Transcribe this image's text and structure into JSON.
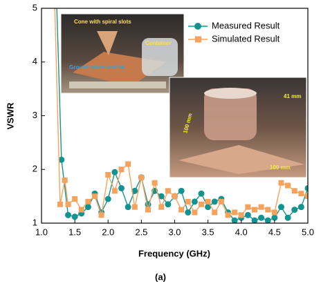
{
  "chart_data": {
    "type": "line",
    "x_label": "Frequency (GHz)",
    "y_label": "VSWR",
    "caption": "(a)",
    "series": [
      {
        "name": "Measured Result",
        "color": "#12938f",
        "marker": "circle",
        "x": [
          1.23,
          1.3,
          1.4,
          1.5,
          1.6,
          1.7,
          1.8,
          1.9,
          2.0,
          2.1,
          2.2,
          2.3,
          2.4,
          2.5,
          2.6,
          2.7,
          2.8,
          2.9,
          3.0,
          3.1,
          3.2,
          3.3,
          3.4,
          3.5,
          3.6,
          3.7,
          3.8,
          3.9,
          4.0,
          4.1,
          4.2,
          4.3,
          4.4,
          4.5,
          4.6,
          4.7,
          4.8,
          4.9,
          5.0
        ],
        "values": [
          5,
          2.18,
          1.15,
          1.12,
          1.18,
          1.3,
          1.55,
          1.2,
          1.45,
          1.95,
          1.65,
          1.3,
          1.6,
          1.85,
          1.35,
          1.6,
          1.5,
          1.35,
          1.5,
          1.6,
          1.2,
          1.4,
          1.55,
          1.3,
          1.4,
          1.45,
          1.2,
          1.05,
          1.1,
          1.15,
          1.05,
          1.1,
          1.05,
          1.1,
          1.3,
          1.1,
          1.25,
          1.3,
          1.65
        ]
      },
      {
        "name": "Simulated Result",
        "color": "#f5a25d",
        "marker": "square",
        "x": [
          1.2,
          1.28,
          1.35,
          1.4,
          1.5,
          1.6,
          1.7,
          1.8,
          1.9,
          2.0,
          2.1,
          2.2,
          2.3,
          2.4,
          2.5,
          2.6,
          2.7,
          2.8,
          2.9,
          3.0,
          3.1,
          3.2,
          3.3,
          3.4,
          3.5,
          3.6,
          3.7,
          3.8,
          3.9,
          4.0,
          4.1,
          4.2,
          4.3,
          4.4,
          4.5,
          4.6,
          4.7,
          4.8,
          4.9,
          5.0
        ],
        "values": [
          5,
          1.35,
          1.8,
          1.35,
          1.45,
          1.25,
          1.4,
          1.5,
          1.15,
          1.9,
          1.6,
          2.0,
          2.1,
          1.3,
          1.85,
          1.25,
          1.75,
          1.3,
          1.6,
          1.5,
          1.25,
          1.4,
          1.2,
          1.35,
          1.4,
          1.2,
          1.4,
          1.15,
          1.2,
          1.15,
          1.3,
          1.25,
          1.3,
          1.25,
          1.2,
          1.75,
          1.7,
          1.6,
          1.55,
          1.5
        ]
      }
    ],
    "xlim": [
      1.0,
      5.0
    ],
    "xticks": [
      {
        "value": 1.0,
        "label": "1.0"
      },
      {
        "value": 1.5,
        "label": "1.5"
      },
      {
        "value": 2.0,
        "label": "2.0"
      },
      {
        "value": 2.5,
        "label": "2.5"
      },
      {
        "value": 3.0,
        "label": "3.0"
      },
      {
        "value": 3.5,
        "label": "3.5"
      },
      {
        "value": 4.0,
        "label": "4.0"
      },
      {
        "value": 4.5,
        "label": "4.5"
      },
      {
        "value": 5.0,
        "label": "5.0"
      }
    ],
    "ylim": [
      1,
      5
    ],
    "yticks": [
      1,
      2,
      3,
      4,
      5
    ],
    "legend": "upper right",
    "annotations": [
      "Cone with spiral slots",
      "Container",
      "Ground plane and lid",
      "41 mm",
      "100 mm",
      "100 mm"
    ]
  }
}
